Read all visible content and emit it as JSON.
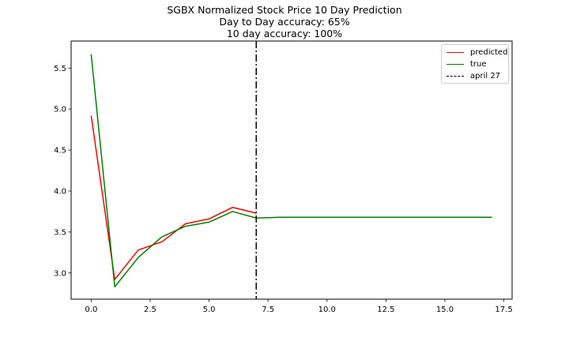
{
  "title_lines": [
    "SGBX Normalized Stock Price 10 Day Prediction",
    "Day to Day accuracy: 65%",
    "10 day accuracy: 100%"
  ],
  "colors": {
    "predicted": "#ff0000",
    "true": "#008000",
    "vline": "#000000"
  },
  "chart_data": {
    "type": "line",
    "title": "SGBX Normalized Stock Price 10 Day Prediction\nDay to Day accuracy: 65%\n10 day accuracy: 100%",
    "xlabel": "",
    "ylabel": "",
    "xlim": [
      -0.85,
      17.85
    ],
    "ylim": [
      2.68,
      5.83
    ],
    "x_ticks": [
      0.0,
      2.5,
      5.0,
      7.5,
      10.0,
      12.5,
      15.0,
      17.5
    ],
    "x_tick_labels": [
      "0.0",
      "2.5",
      "5.0",
      "7.5",
      "10.0",
      "12.5",
      "15.0",
      "17.5"
    ],
    "y_ticks": [
      3.0,
      3.5,
      4.0,
      4.5,
      5.0,
      5.5
    ],
    "y_tick_labels": [
      "3.0",
      "3.5",
      "4.0",
      "4.5",
      "5.0",
      "5.5"
    ],
    "grid": false,
    "legend_position": "top-right",
    "series": [
      {
        "name": "predicted",
        "color": "#ff0000",
        "style": "solid",
        "x": [
          0,
          1,
          2,
          3,
          4,
          5,
          6,
          7
        ],
        "y": [
          4.92,
          2.92,
          3.28,
          3.38,
          3.6,
          3.66,
          3.8,
          3.73
        ]
      },
      {
        "name": "true",
        "color": "#008000",
        "style": "solid",
        "x": [
          0,
          1,
          2,
          3,
          4,
          5,
          6,
          7,
          8,
          9,
          10,
          11,
          12,
          13,
          14,
          15,
          16,
          17
        ],
        "y": [
          5.67,
          2.83,
          3.19,
          3.44,
          3.57,
          3.62,
          3.75,
          3.67,
          3.68,
          3.68,
          3.68,
          3.68,
          3.68,
          3.68,
          3.68,
          3.68,
          3.68,
          3.68
        ]
      }
    ],
    "vlines": [
      {
        "name": "april 27",
        "x": 7,
        "color": "#000000",
        "style": "dashdot"
      }
    ]
  }
}
